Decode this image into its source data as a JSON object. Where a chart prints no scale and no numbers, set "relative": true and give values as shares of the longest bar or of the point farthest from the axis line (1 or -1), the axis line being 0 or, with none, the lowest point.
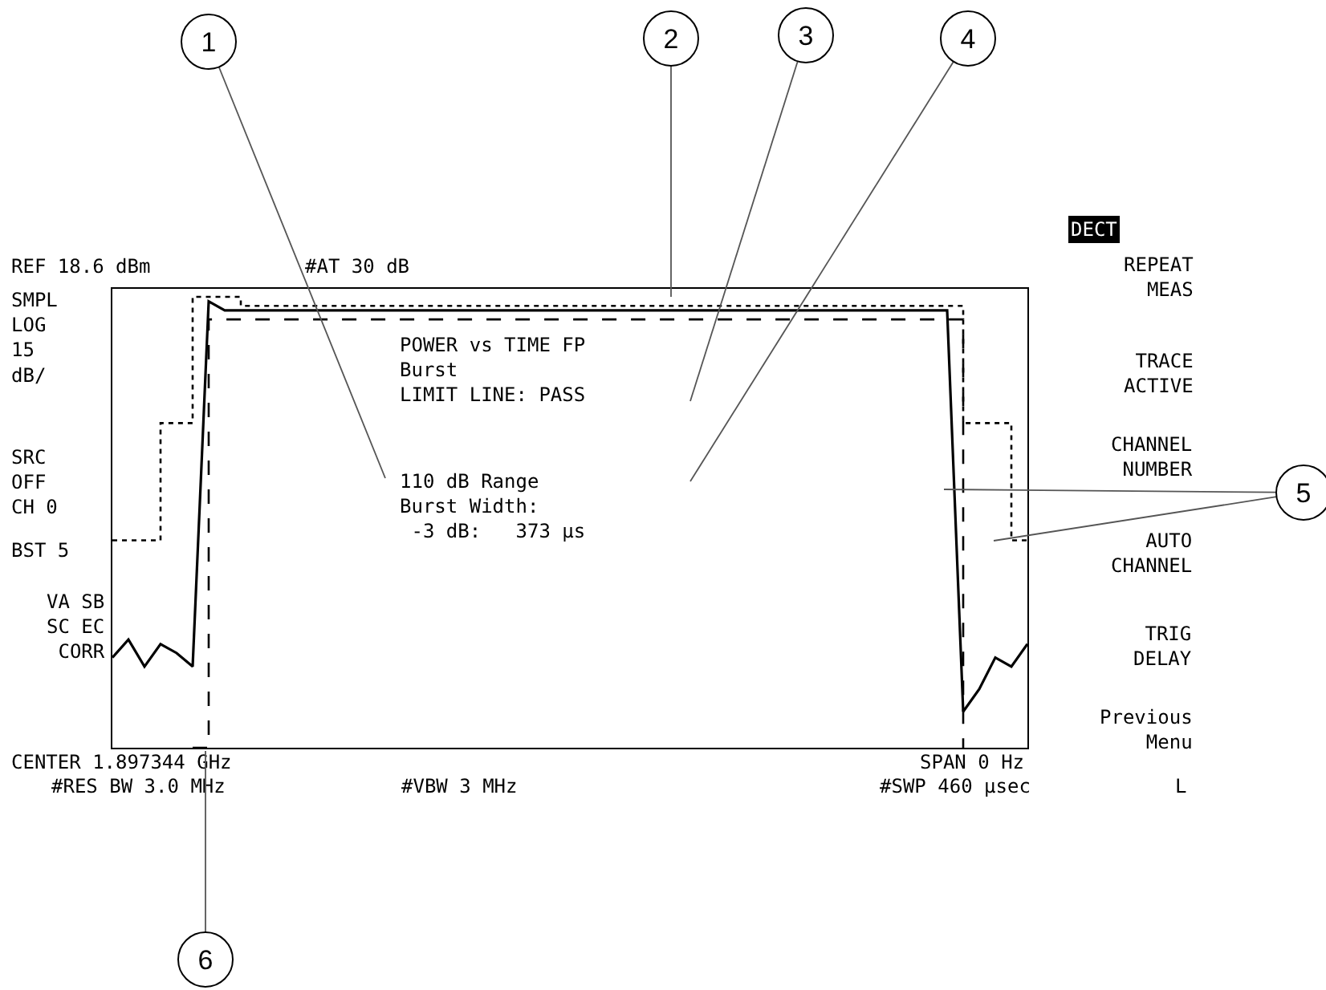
{
  "chart_data": {
    "type": "line",
    "relative": true,
    "grid": false,
    "legend": false,
    "categories": [
      null,
      null,
      null,
      null,
      null,
      null,
      null,
      null,
      null,
      null,
      null,
      null,
      null,
      null,
      null,
      null,
      null,
      null,
      null,
      null,
      null,
      null,
      null,
      null,
      null,
      null,
      null,
      null,
      null,
      null,
      null,
      null,
      null,
      null,
      null,
      null,
      null,
      null,
      null,
      null,
      null,
      null,
      null,
      null,
      null,
      null,
      null,
      null,
      null,
      null,
      null,
      null,
      null,
      null,
      null,
      null,
      null,
      null
    ],
    "series": [
      {
        "type": "line",
        "color": "#000000",
        "line_style": "solid",
        "values": [
          0.2,
          0.24,
          0.18,
          0.23,
          0.21,
          0.18,
          0.99,
          0.97,
          0.97,
          0.97,
          0.97,
          0.97,
          0.97,
          0.97,
          0.97,
          0.97,
          0.97,
          0.97,
          0.97,
          0.97,
          0.97,
          0.97,
          0.97,
          0.97,
          0.97,
          0.97,
          0.97,
          0.97,
          0.97,
          0.97,
          0.97,
          0.97,
          0.97,
          0.97,
          0.97,
          0.97,
          0.97,
          0.97,
          0.97,
          0.97,
          0.97,
          0.97,
          0.97,
          0.97,
          0.97,
          0.97,
          0.97,
          0.97,
          0.97,
          0.97,
          0.97,
          0.97,
          0.97,
          0.08,
          0.13,
          0.2,
          0.18,
          0.23
        ]
      },
      {
        "type": "step",
        "color": "#000000",
        "line_style": "dotted",
        "values": [
          0.46,
          0.46,
          0.46,
          0.72,
          0.72,
          1.0,
          1.0,
          1.0,
          0.98,
          0.98,
          0.98,
          0.98,
          0.98,
          0.98,
          0.98,
          0.98,
          0.98,
          0.98,
          0.98,
          0.98,
          0.98,
          0.98,
          0.98,
          0.98,
          0.98,
          0.98,
          0.98,
          0.98,
          0.98,
          0.98,
          0.98,
          0.98,
          0.98,
          0.98,
          0.98,
          0.98,
          0.98,
          0.98,
          0.98,
          0.98,
          0.98,
          0.98,
          0.98,
          0.98,
          0.98,
          0.98,
          0.98,
          0.98,
          0.98,
          0.98,
          0.98,
          0.98,
          0.98,
          0.72,
          0.72,
          0.72,
          0.46,
          0.46
        ]
      },
      {
        "type": "step",
        "color": "#000000",
        "line_style": "dashed",
        "values": [
          null,
          null,
          null,
          null,
          null,
          0,
          0.95,
          0.95,
          0.95,
          0.95,
          0.95,
          0.95,
          0.95,
          0.95,
          0.95,
          0.95,
          0.95,
          0.95,
          0.95,
          0.95,
          0.95,
          0.95,
          0.95,
          0.95,
          0.95,
          0.95,
          0.95,
          0.95,
          0.95,
          0.95,
          0.95,
          0.95,
          0.95,
          0.95,
          0.95,
          0.95,
          0.95,
          0.95,
          0.95,
          0.95,
          0.95,
          0.95,
          0.95,
          0.95,
          0.95,
          0.95,
          0.95,
          0.95,
          0.95,
          0.95,
          0.95,
          0.95,
          0.95,
          0,
          null,
          null,
          null,
          null
        ]
      }
    ],
    "annotations": [
      "REF 18.6 dBm",
      "#AT 30 dB",
      "SMPL\nLOG\n15\ndB/",
      "SRC\nOFF\nCH 0",
      "BST 5",
      "VA SB\nSC EC\nCORR",
      "CENTER 1.897344 GHz",
      "SPAN 0 Hz",
      "#RES BW 3.0 MHz",
      "#VBW 3 MHz",
      "#SWP 460 µsec",
      "POWER vs TIME FP\nBurst\nLIMIT LINE: PASS",
      "110 dB Range\nBurst Width:\n -3 dB:   373 µs",
      "DECT",
      "REPEAT\nMEAS",
      "TRACE\nACTIVE",
      "CHANNEL\nNUMBER",
      "AUTO\nCHANNEL",
      "TRIG\nDELAY",
      "Previous\nMenu",
      "L",
      "1",
      "2",
      "3",
      "4",
      "5",
      "6"
    ]
  }
}
